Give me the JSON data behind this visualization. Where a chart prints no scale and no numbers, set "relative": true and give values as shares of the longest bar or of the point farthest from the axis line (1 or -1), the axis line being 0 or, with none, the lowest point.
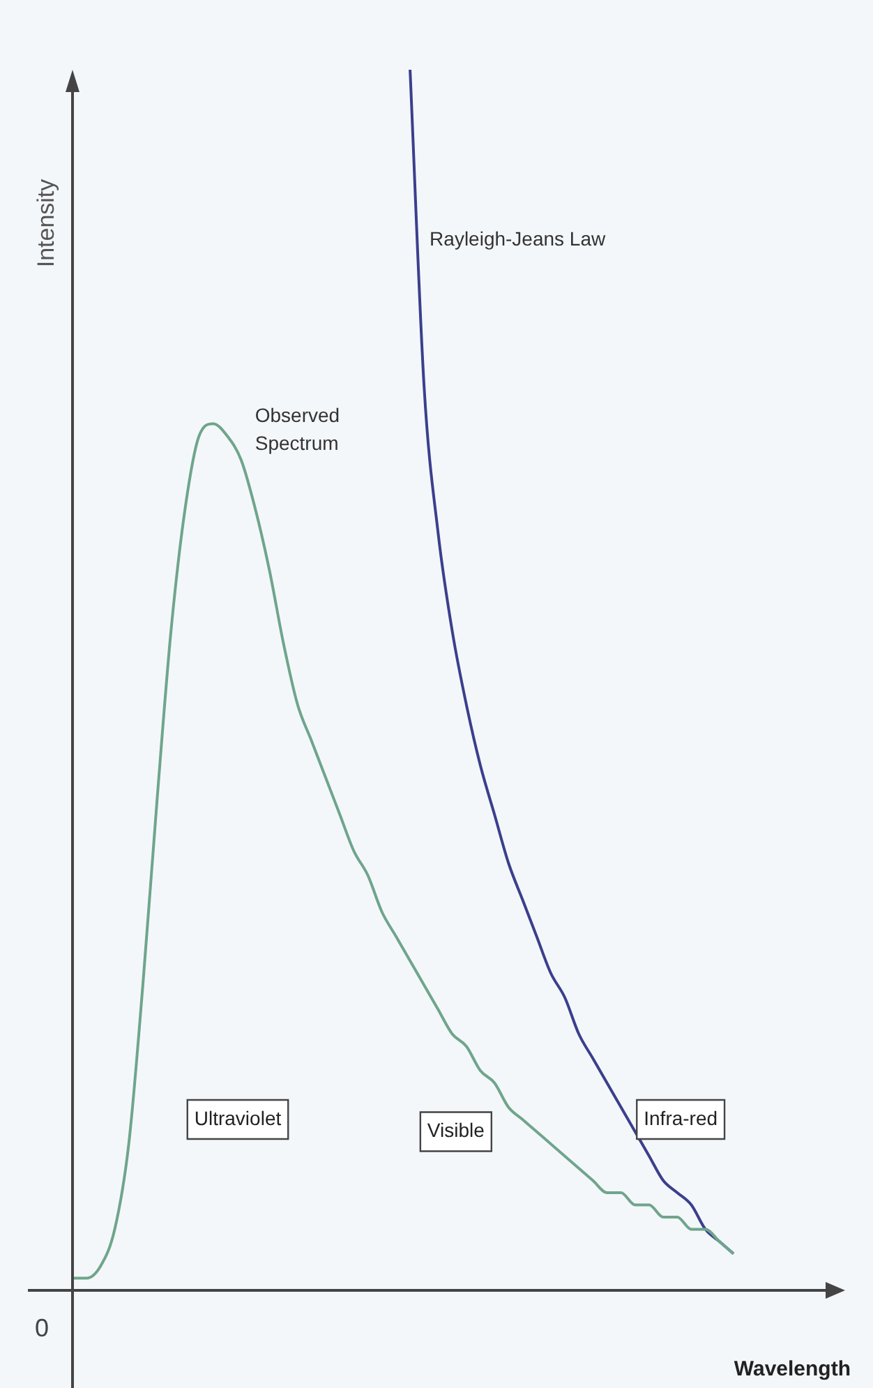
{
  "chart_data": {
    "type": "line",
    "relative": true,
    "xlabel": "Wavelength",
    "ylabel": "Intensity",
    "grid": false,
    "legend": false,
    "tick_labels": false,
    "marker": "none",
    "categories": [
      null,
      null,
      null,
      null,
      null,
      null,
      null,
      null,
      null,
      null,
      null,
      null,
      null,
      null,
      null,
      null,
      null,
      null,
      null,
      null,
      null,
      null,
      null,
      null,
      null,
      null,
      null,
      null,
      null,
      null,
      null,
      null,
      null,
      null,
      null,
      null,
      null,
      null,
      null,
      null,
      null,
      null,
      null,
      null,
      null,
      null,
      null,
      null
    ],
    "series": [
      {
        "name": "Observed Spectrum",
        "color": "#6fa58c",
        "values": [
          0.01,
          0.01,
          0.02,
          0.05,
          0.12,
          0.25,
          0.4,
          0.54,
          0.64,
          0.7,
          0.71,
          0.7,
          0.68,
          0.64,
          0.59,
          0.53,
          0.48,
          0.45,
          0.42,
          0.39,
          0.36,
          0.34,
          0.31,
          0.29,
          0.27,
          0.25,
          0.23,
          0.21,
          0.2,
          0.18,
          0.17,
          0.15,
          0.14,
          0.13,
          0.12,
          0.11,
          0.1,
          0.09,
          0.08,
          0.08,
          0.07,
          0.07,
          0.06,
          0.06,
          0.05,
          0.05,
          0.04,
          0.03
        ]
      },
      {
        "name": "Rayleigh-Jeans Law",
        "color": "#3b3f8c",
        "values": [
          null,
          null,
          null,
          null,
          null,
          null,
          null,
          null,
          null,
          null,
          null,
          null,
          null,
          null,
          null,
          null,
          null,
          null,
          null,
          null,
          null,
          null,
          null,
          null,
          1.0,
          0.74,
          0.62,
          0.54,
          0.48,
          0.43,
          0.39,
          0.35,
          0.32,
          0.29,
          0.26,
          0.24,
          0.21,
          0.19,
          0.17,
          0.15,
          0.13,
          0.11,
          0.09,
          0.08,
          0.07,
          0.05,
          0.04,
          0.03
        ]
      }
    ],
    "annotations": [
      "Ultraviolet",
      "Visible",
      "Infra-red",
      "0"
    ]
  }
}
